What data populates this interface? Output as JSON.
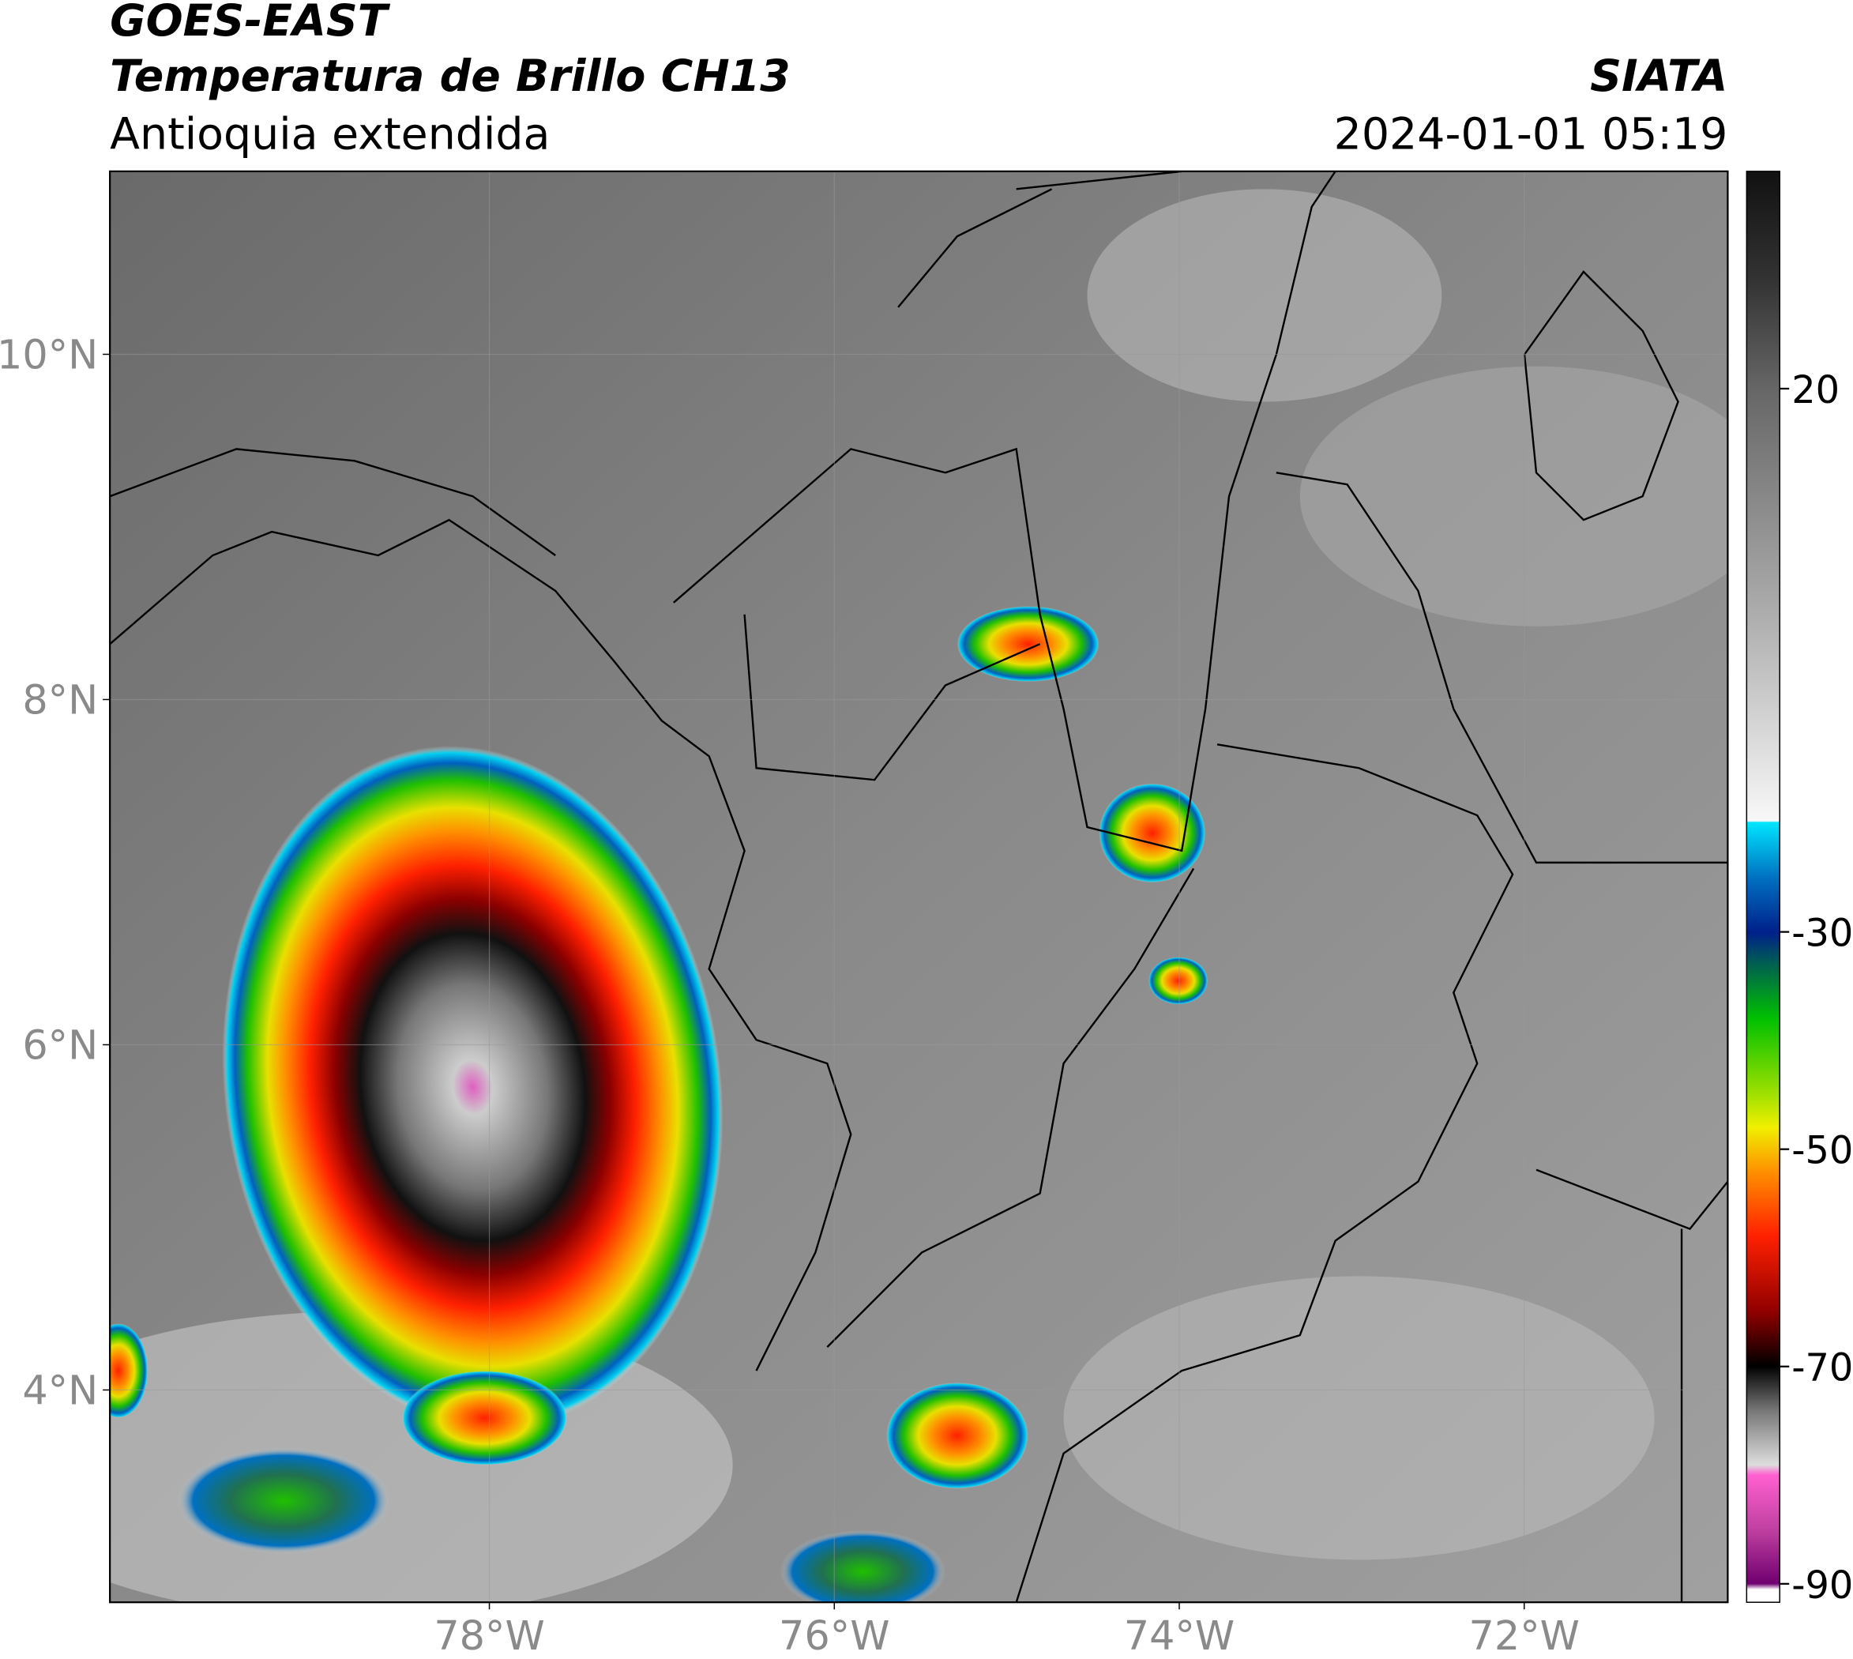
{
  "header": {
    "title_line1": "GOES-EAST",
    "title_line2": "Temperatura de Brillo CH13",
    "subtitle": "Antioquia extendida",
    "organization": "SIATA",
    "timestamp": "2024-01-01 05:19"
  },
  "map": {
    "lon_range": [
      -80.2,
      -70.82
    ],
    "lat_range": [
      2.77,
      11.06
    ],
    "lat_ticks": [
      {
        "value": 10,
        "label": "10°N"
      },
      {
        "value": 8,
        "label": "8°N"
      },
      {
        "value": 6,
        "label": "6°N"
      },
      {
        "value": 4,
        "label": "4°N"
      }
    ],
    "lon_ticks": [
      {
        "value": -78,
        "label": "78°W"
      },
      {
        "value": -76,
        "label": "76°W"
      },
      {
        "value": -74,
        "label": "74°W"
      },
      {
        "value": -72,
        "label": "72°W"
      }
    ]
  },
  "colorbar": {
    "range": [
      -91.7,
      40
    ],
    "ticks": [
      20,
      -30,
      -50,
      -70,
      -90
    ]
  }
}
